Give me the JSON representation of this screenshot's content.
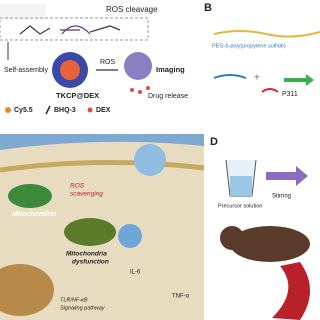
{
  "panel_a": {
    "cleavage": "ROS cleavage",
    "self_assembly": "Self-assembly",
    "ros": "ROS",
    "product": "TKCP@DEX",
    "imaging": "Imaging",
    "drug_release": "Drug release",
    "legend": [
      "Cy5.5",
      "BHQ-3",
      "DEX"
    ]
  },
  "panel_b": {
    "label": "B",
    "polymer": "PEG-b-poly(propylene sulfide)",
    "peptide": "P311"
  },
  "panel_c": {
    "ros_scavenging": [
      "ROS",
      "scavenging"
    ],
    "mitochondria": "Mitochondria",
    "dysfunction": [
      "Mitochondria",
      "dysfunction"
    ],
    "pathway": [
      "TLR/NF-κB",
      "Signaling pathway"
    ],
    "cytokine_1": "IL-6",
    "cytokine_2": "TNF-α"
  },
  "panel_d": {
    "label": "D",
    "precursor": "Precursor solution",
    "stirring": "Stirring"
  }
}
